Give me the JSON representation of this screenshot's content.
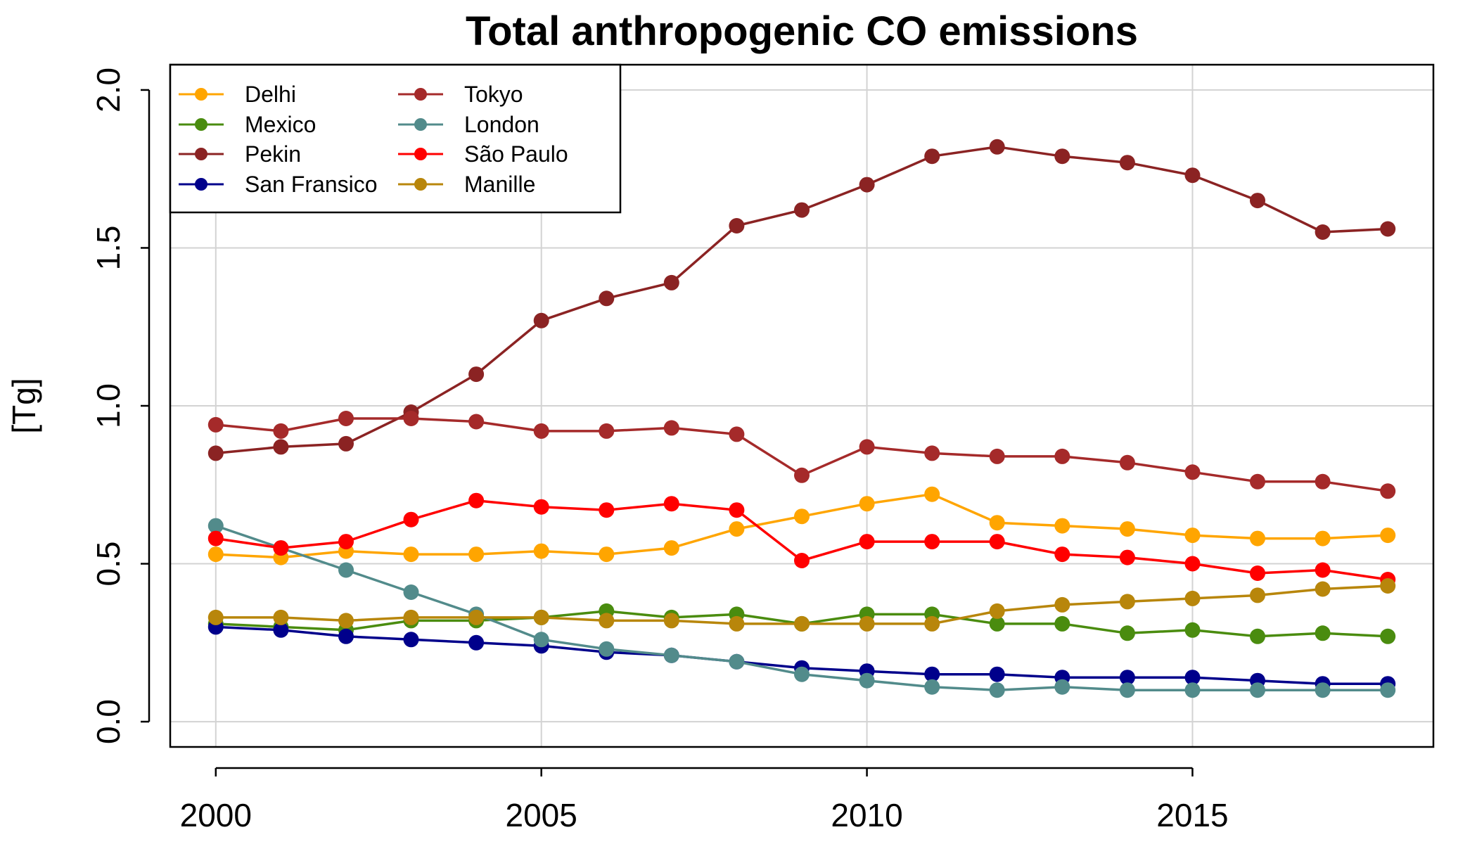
{
  "chart_data": {
    "type": "line",
    "title": "Total anthropogenic CO emissions",
    "xlabel": "",
    "ylabel": "[Tg]",
    "xlim": [
      1999.3,
      2018.7
    ],
    "ylim": [
      -0.08,
      2.08
    ],
    "x": [
      2000,
      2001,
      2002,
      2003,
      2004,
      2005,
      2006,
      2007,
      2008,
      2009,
      2010,
      2011,
      2012,
      2013,
      2014,
      2015,
      2016,
      2017,
      2018
    ],
    "xticks": [
      2000,
      2005,
      2010,
      2015
    ],
    "xtick_labels": [
      "2000",
      "2005",
      "2010",
      "2015"
    ],
    "yticks": [
      0.0,
      0.5,
      1.0,
      1.5,
      2.0
    ],
    "ytick_labels": [
      "0.0",
      "0.5",
      "1.0",
      "1.5",
      "2.0"
    ],
    "grid": true,
    "legend_position": "top-left",
    "series": [
      {
        "name": "Delhi",
        "color": "#FFA500",
        "values": [
          0.53,
          0.52,
          0.54,
          0.53,
          0.53,
          0.54,
          0.53,
          0.55,
          0.61,
          0.65,
          0.69,
          0.72,
          0.63,
          0.62,
          0.61,
          0.59,
          0.58,
          0.58,
          0.59
        ]
      },
      {
        "name": "Mexico",
        "color": "#4A8C0F",
        "values": [
          0.31,
          0.3,
          0.29,
          0.32,
          0.32,
          0.33,
          0.35,
          0.33,
          0.34,
          0.31,
          0.34,
          0.34,
          0.31,
          0.31,
          0.28,
          0.29,
          0.27,
          0.28,
          0.27
        ]
      },
      {
        "name": "Pekin",
        "color": "#8B2323",
        "values": [
          0.85,
          0.87,
          0.88,
          0.98,
          1.1,
          1.27,
          1.34,
          1.39,
          1.57,
          1.62,
          1.7,
          1.79,
          1.82,
          1.79,
          1.77,
          1.73,
          1.65,
          1.55,
          1.56
        ]
      },
      {
        "name": "San Fransico",
        "color": "#00008B",
        "values": [
          0.3,
          0.29,
          0.27,
          0.26,
          0.25,
          0.24,
          0.22,
          0.21,
          0.19,
          0.17,
          0.16,
          0.15,
          0.15,
          0.14,
          0.14,
          0.14,
          0.13,
          0.12,
          0.12
        ]
      },
      {
        "name": "Tokyo",
        "color": "#A52A2A",
        "values": [
          0.94,
          0.92,
          0.96,
          0.96,
          0.95,
          0.92,
          0.92,
          0.93,
          0.91,
          0.78,
          0.87,
          0.85,
          0.84,
          0.84,
          0.82,
          0.79,
          0.76,
          0.76,
          0.73
        ]
      },
      {
        "name": "London",
        "color": "#528B8B",
        "values": [
          0.62,
          0.55,
          0.48,
          0.41,
          0.34,
          0.26,
          0.23,
          0.21,
          0.19,
          0.15,
          0.13,
          0.11,
          0.1,
          0.11,
          0.1,
          0.1,
          0.1,
          0.1,
          0.1
        ]
      },
      {
        "name": "São Paulo",
        "color": "#FF0000",
        "values": [
          0.58,
          0.55,
          0.57,
          0.64,
          0.7,
          0.68,
          0.67,
          0.69,
          0.67,
          0.51,
          0.57,
          0.57,
          0.57,
          0.53,
          0.52,
          0.5,
          0.47,
          0.48,
          0.45
        ]
      },
      {
        "name": "Manille",
        "color": "#B8860B",
        "values": [
          0.33,
          0.33,
          0.32,
          0.33,
          0.33,
          0.33,
          0.32,
          0.32,
          0.31,
          0.31,
          0.31,
          0.31,
          0.35,
          0.37,
          0.38,
          0.39,
          0.4,
          0.42,
          0.43
        ]
      }
    ]
  }
}
